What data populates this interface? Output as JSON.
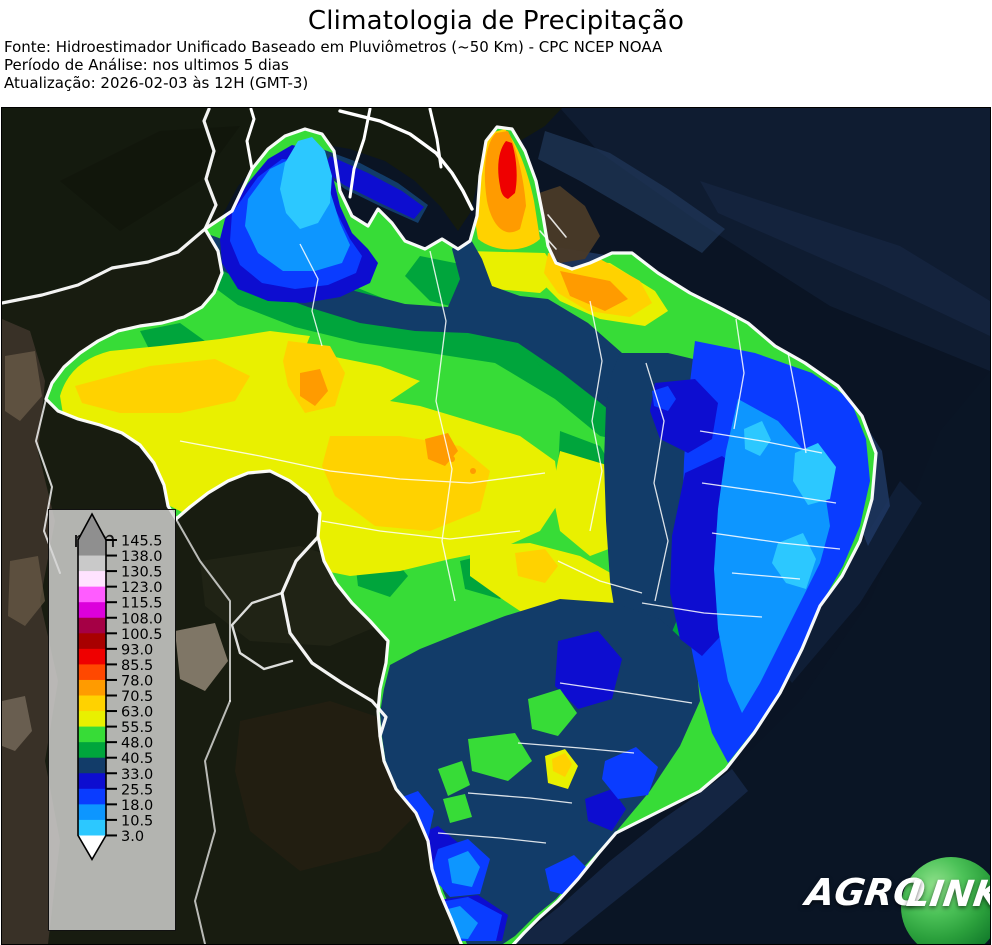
{
  "header": {
    "title": "Climatologia de Precipitação",
    "source_line": "Fonte: Hidroestimador Unificado Baseado em Pluviômetros (~50 Km) - CPC NCEP NOAA",
    "period_line": "Período de Análise: nos ultimos 5 dias",
    "updated_line": "Atualização: 2026-02-03 às 12H (GMT-3)"
  },
  "legend": {
    "unit_label": "mm",
    "levels": [
      "145.5",
      "138.0",
      "130.5",
      "123.0",
      "115.5",
      "108.0",
      "100.5",
      "93.0",
      "85.5",
      "78.0",
      "70.5",
      "63.0",
      "55.5",
      "48.0",
      "40.5",
      "33.0",
      "25.5",
      "18.0",
      "10.5",
      "3.0"
    ],
    "band_color_keys": [
      "gray1",
      "gray2",
      "palepink",
      "pink",
      "magenta",
      "wine",
      "darkred",
      "red",
      "orangered",
      "orange",
      "amber",
      "yellow",
      "green",
      "medgreen",
      "navy",
      "darkblue",
      "blue",
      "brightblue",
      "cyan"
    ],
    "arrow_top_key": "gray1",
    "arrow_bottom_key": "white"
  },
  "palette": {
    "gray1": "#8f8f8f",
    "gray2": "#c9c9c9",
    "palepink": "#ffe3ff",
    "pink": "#ff5cff",
    "magenta": "#dc00dc",
    "wine": "#a50045",
    "darkred": "#a80000",
    "red": "#ef0000",
    "orangered": "#ff4800",
    "orange": "#ff9b00",
    "amber": "#ffd200",
    "yellow": "#e9f000",
    "green": "#37dc37",
    "medgreen": "#00a53c",
    "navy": "#123c69",
    "darkblue": "#0d0dd0",
    "blue": "#0a3cff",
    "brightblue": "#0d96ff",
    "cyan": "#2cc8ff",
    "white": "#ffffff"
  },
  "logo": {
    "agro": "AGRO",
    "link": "LINK"
  }
}
